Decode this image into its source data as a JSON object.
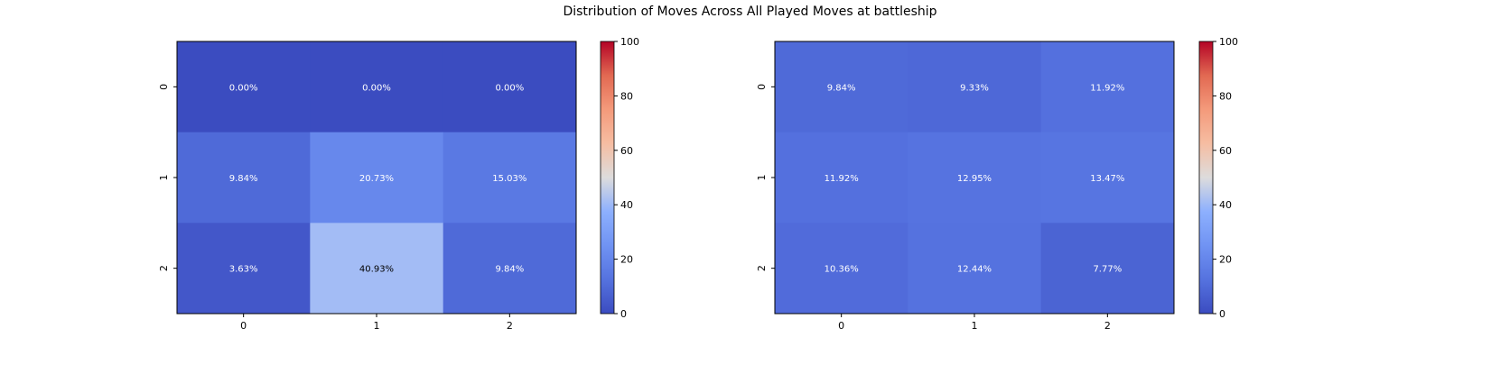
{
  "chart_data": {
    "title": "Distribution of Moves Across All Played Moves at battleship",
    "type": "heatmap",
    "charts": [
      {
        "type": "heatmap",
        "x_ticks": [
          "0",
          "1",
          "2"
        ],
        "y_ticks": [
          "0",
          "1",
          "2"
        ],
        "values": [
          [
            0.0,
            0.0,
            0.0
          ],
          [
            9.84,
            20.73,
            15.03
          ],
          [
            3.63,
            40.93,
            9.84
          ]
        ],
        "cell_labels": [
          [
            "0.00%",
            "0.00%",
            "0.00%"
          ],
          [
            "9.84%",
            "20.73%",
            "15.03%"
          ],
          [
            "3.63%",
            "40.93%",
            "9.84%"
          ]
        ]
      },
      {
        "type": "heatmap",
        "x_ticks": [
          "0",
          "1",
          "2"
        ],
        "y_ticks": [
          "0",
          "1",
          "2"
        ],
        "values": [
          [
            9.84,
            9.33,
            11.92
          ],
          [
            11.92,
            12.95,
            13.47
          ],
          [
            10.36,
            12.44,
            7.77
          ]
        ],
        "cell_labels": [
          [
            "9.84%",
            "9.33%",
            "11.92%"
          ],
          [
            "11.92%",
            "12.95%",
            "13.47%"
          ],
          [
            "10.36%",
            "12.44%",
            "7.77%"
          ]
        ]
      }
    ],
    "colorbar": {
      "ticks": [
        "0",
        "20",
        "40",
        "60",
        "80",
        "100"
      ],
      "range": [
        0,
        100
      ],
      "colormap": "coolwarm"
    }
  }
}
